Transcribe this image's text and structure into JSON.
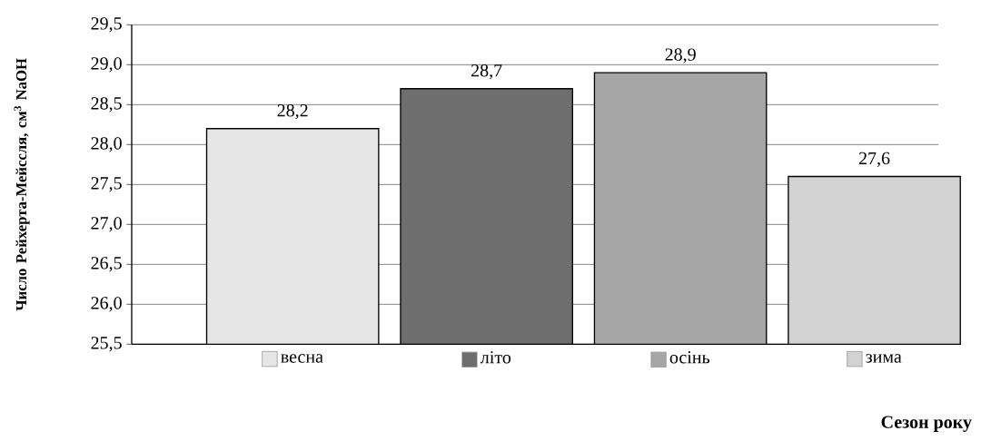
{
  "chart_data": {
    "type": "bar",
    "ylabel": "Число Рейхерта-Мейссля, см$^{3}$ NaOH",
    "xlabel": "Сезон року",
    "categories": [
      "весна",
      "літо",
      "осінь",
      "зима"
    ],
    "values": [
      28.2,
      28.7,
      28.9,
      27.6
    ],
    "colors": [
      "#e6e6e6",
      "#6e6e6e",
      "#a6a6a6",
      "#d2d2d2"
    ],
    "value_labels": [
      "28,2",
      "28,7",
      "28,9",
      "27,6"
    ],
    "ylim": [
      25.5,
      29.5
    ],
    "yticks": [
      {
        "value": 25.5,
        "label": "25,5"
      },
      {
        "value": 26.0,
        "label": "26,0"
      },
      {
        "value": 26.5,
        "label": "26,5"
      },
      {
        "value": 27.0,
        "label": "27,0"
      },
      {
        "value": 27.5,
        "label": "27,5"
      },
      {
        "value": 28.0,
        "label": "28,0"
      },
      {
        "value": 28.5,
        "label": "28,5"
      },
      {
        "value": 29.0,
        "label": "29,0"
      },
      {
        "value": 29.5,
        "label": "29,5"
      }
    ],
    "grid": "y"
  }
}
